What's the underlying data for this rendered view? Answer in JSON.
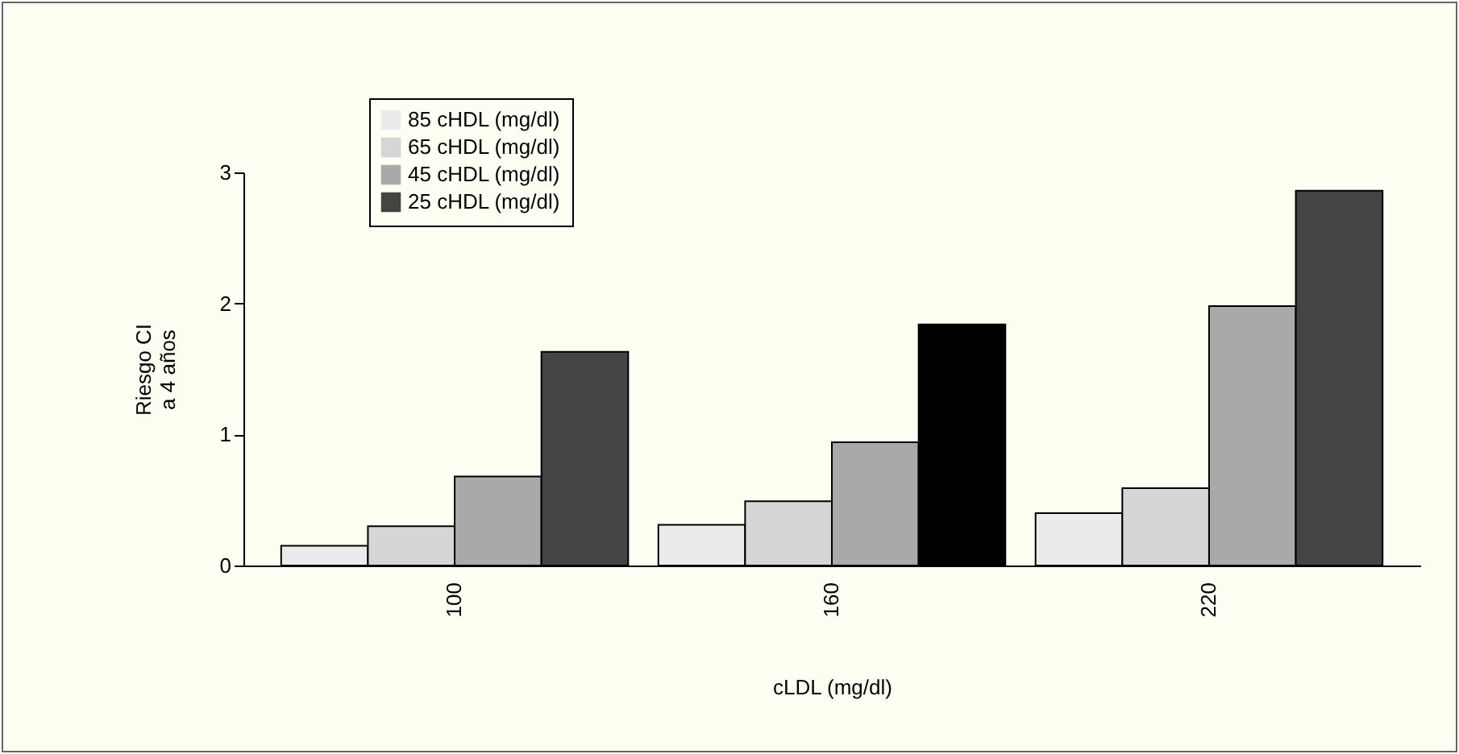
{
  "chart_data": {
    "type": "bar",
    "xlabel": "cLDL (mg/dl)",
    "ylabel": "Riesgo CI\na 4 años",
    "categories": [
      "100",
      "160",
      "220"
    ],
    "series": [
      {
        "name": "85 cHDL (mg/dl)",
        "color": "#ebebeb",
        "values": [
          0.15,
          0.31,
          0.4
        ]
      },
      {
        "name": "65 cHDL (mg/dl)",
        "color": "#d6d6d6",
        "values": [
          0.3,
          0.49,
          0.59
        ]
      },
      {
        "name": "45 cHDL (mg/dl)",
        "color": "#a9a9a9",
        "values": [
          0.68,
          0.94,
          1.98
        ]
      },
      {
        "name": "25 cHDL (mg/dl)",
        "color": "#444444",
        "colors": [
          "#444444",
          "#000000",
          "#444444"
        ],
        "values": [
          1.63,
          1.84,
          2.86
        ]
      }
    ],
    "ylim": [
      0,
      3
    ],
    "yticks": [
      0,
      1,
      2,
      3
    ],
    "grid": false,
    "legend": "top left"
  }
}
